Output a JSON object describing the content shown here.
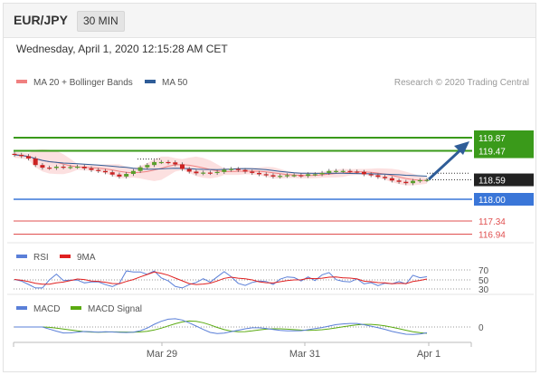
{
  "header": {
    "pair": "EUR/JPY",
    "timeframe": "30 MIN",
    "timestamp": "Wednesday, April 1, 2020 12:15:28 AM CET"
  },
  "chart_data": {
    "type": "candlestick",
    "source": "Research © 2020 Trading Central",
    "legend": [
      {
        "name": "MA 20 + Bollinger Bands",
        "color": "#f08080"
      },
      {
        "name": "MA 50",
        "color": "#2f5d98"
      }
    ],
    "price_close_approx": [
      119.35,
      119.31,
      119.24,
      119.04,
      118.96,
      118.95,
      118.99,
      118.97,
      118.98,
      118.99,
      118.94,
      118.89,
      118.86,
      118.82,
      118.75,
      118.69,
      118.77,
      118.86,
      118.97,
      119.04,
      119.13,
      119.13,
      119.12,
      119.06,
      118.92,
      118.84,
      118.79,
      118.81,
      118.8,
      118.83,
      118.9,
      118.92,
      118.89,
      118.84,
      118.8,
      118.76,
      118.73,
      118.69,
      118.71,
      118.73,
      118.73,
      118.71,
      118.76,
      118.76,
      118.8,
      118.86,
      118.86,
      118.86,
      118.84,
      118.83,
      118.76,
      118.73,
      118.68,
      118.64,
      118.57,
      118.53,
      118.49,
      118.56,
      118.58,
      118.59
    ],
    "price_axis_range": [
      116.7,
      119.6
    ],
    "levels": [
      {
        "value": "119.87",
        "color": "#3a9a1a",
        "kind": "resistance"
      },
      {
        "value": "119.47",
        "color": "#3a9a1a",
        "kind": "resistance"
      },
      {
        "value": "118.59",
        "color": "#222222",
        "kind": "last"
      },
      {
        "value": "118.00",
        "color": "#3a76d8",
        "kind": "pivot"
      },
      {
        "value": "117.34",
        "color": "#e05050",
        "kind": "support"
      },
      {
        "value": "116.94",
        "color": "#e05050",
        "kind": "support"
      }
    ],
    "rsi": {
      "legend": [
        {
          "name": "RSI",
          "color": "#5a7fd8"
        },
        {
          "name": "9MA",
          "color": "#e02020"
        }
      ],
      "ticks": [
        "70",
        "50",
        "30"
      ]
    },
    "macd": {
      "legend": [
        {
          "name": "MACD",
          "color": "#5a7fd8"
        },
        {
          "name": "MACD Signal",
          "color": "#5aaa10"
        }
      ],
      "ticks": [
        "0"
      ]
    },
    "x_ticks": [
      "Mar 29",
      "Mar 31",
      "Apr 1"
    ]
  }
}
